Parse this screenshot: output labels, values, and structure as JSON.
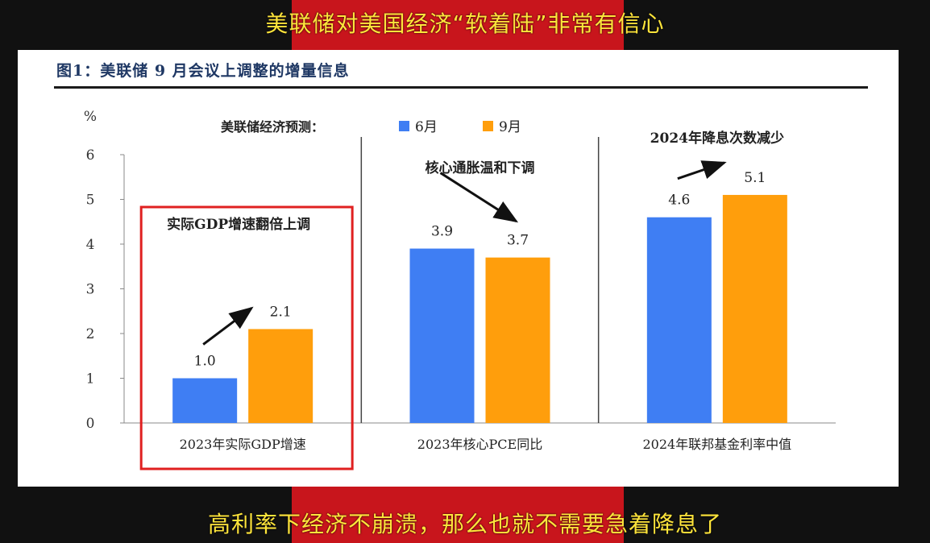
{
  "video": {
    "title_caption": "美联储对美国经济“软着陆”非常有信心",
    "subtitle_caption": "高利率下经济不崩溃，那么也就不需要急着降息了",
    "band_color": "#c8151c",
    "caption_color": "#ffe53b"
  },
  "chart_data": {
    "type": "bar",
    "title": "图1：美联储 9 月会议上调整的增量信息",
    "ylabel": "%",
    "ylim": [
      0,
      6
    ],
    "yticks": [
      "0",
      "1",
      "2",
      "3",
      "4",
      "5",
      "6"
    ],
    "grid": false,
    "legend": {
      "title": "美联储经济预测：",
      "placement": "top"
    },
    "categories": [
      "2023年实际GDP增速",
      "2023年核心PCE同比",
      "2024年联邦基金利率中值"
    ],
    "series": [
      {
        "name": "6月",
        "color": "#3f7ef3",
        "values": [
          1.0,
          3.9,
          4.6
        ],
        "labels": [
          "1.0",
          "3.9",
          "4.6"
        ]
      },
      {
        "name": "9月",
        "color": "#ff9e0c",
        "values": [
          2.1,
          3.7,
          5.1
        ],
        "labels": [
          "2.1",
          "3.7",
          "5.1"
        ]
      }
    ],
    "annotations": [
      {
        "text": "实际GDP增速翻倍上调",
        "group": 0,
        "boxed": true,
        "box_color": "#e02020"
      },
      {
        "text": "核心通胀温和下调",
        "group": 1
      },
      {
        "text": "2024年降息次数减少",
        "group": 2
      }
    ]
  }
}
